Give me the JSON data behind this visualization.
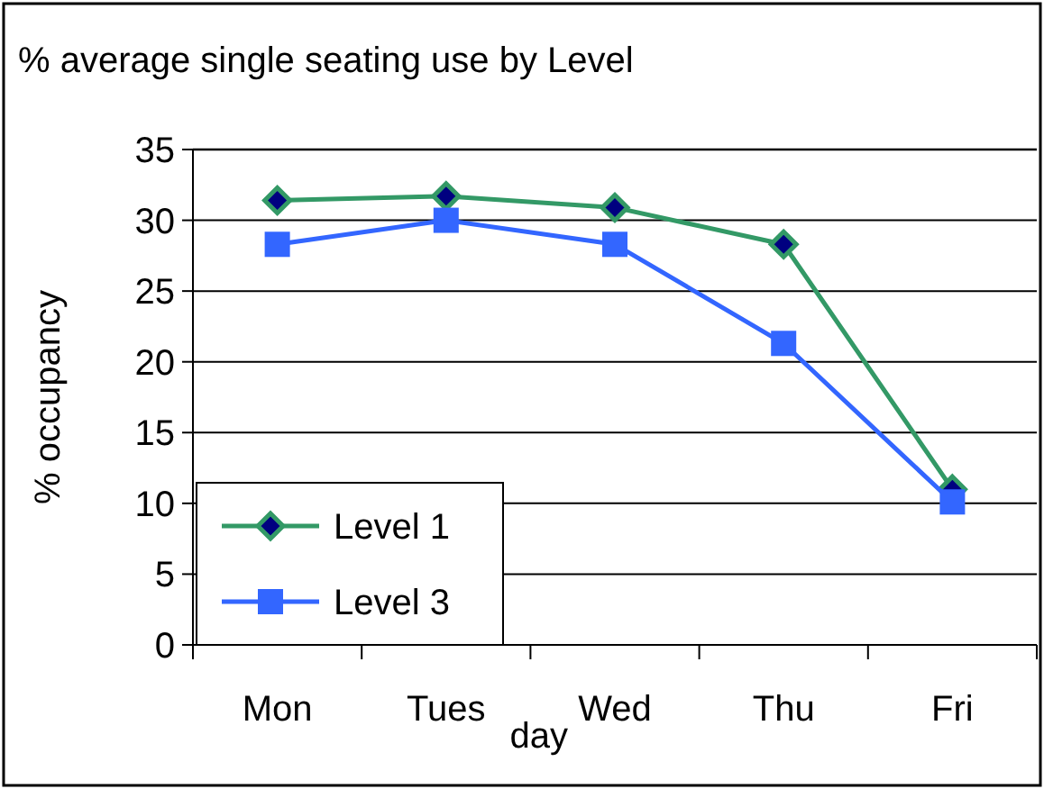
{
  "chart_data": {
    "type": "line",
    "title": "% average single seating use by Level",
    "xlabel": "day",
    "ylabel": "% occupancy",
    "categories": [
      "Mon",
      "Tues",
      "Wed",
      "Thu",
      "Fri"
    ],
    "series": [
      {
        "name": "Level 1",
        "color": "#339966",
        "marker": "diamond",
        "values": [
          31.4,
          31.7,
          30.9,
          28.3,
          11.0
        ]
      },
      {
        "name": "Level 3",
        "color": "#3366ff",
        "marker": "square",
        "values": [
          28.3,
          30.0,
          28.3,
          21.3,
          10.1
        ]
      }
    ],
    "ylim": [
      0,
      35
    ],
    "yticks": [
      0,
      5,
      10,
      15,
      20,
      25,
      30,
      35
    ],
    "grid": "y",
    "legend": "bottom left"
  }
}
